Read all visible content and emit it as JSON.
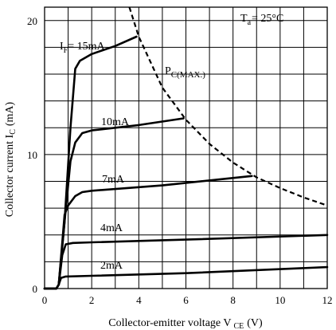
{
  "chart_data": {
    "type": "line",
    "xlabel_main": "Collector-emitter voltage V",
    "xlabel_sub": "CE",
    "xlabel_unit": "(V)",
    "ylabel_main": "Collector current I",
    "ylabel_sub": "C",
    "ylabel_unit": "(mA)",
    "xlim": [
      0,
      12
    ],
    "ylim": [
      0,
      21
    ],
    "x_ticks": [
      0,
      2,
      4,
      6,
      8,
      10,
      12
    ],
    "y_ticks": [
      0,
      10,
      20
    ],
    "grid": true,
    "condition": {
      "prefix": "T",
      "sub": "a",
      "text": "= 25°C"
    },
    "series": [
      {
        "name": "IF= 15mA",
        "label_prefix": "I",
        "label_sub": "F",
        "label_text": "= 15mA",
        "x": [
          0.0,
          0.5,
          0.6,
          0.85,
          1.1,
          1.3,
          1.5,
          2.0,
          3.0,
          3.9
        ],
        "y": [
          0.0,
          0.0,
          0.3,
          5.0,
          12.0,
          16.4,
          17.0,
          17.5,
          18.1,
          18.8
        ]
      },
      {
        "name": "10mA",
        "label_prefix": "",
        "label_sub": "",
        "label_text": "10mA",
        "x": [
          0.0,
          0.5,
          0.6,
          0.85,
          1.1,
          1.3,
          1.6,
          2.0,
          4.0,
          5.9
        ],
        "y": [
          0.0,
          0.0,
          0.3,
          5.0,
          9.5,
          10.9,
          11.6,
          11.8,
          12.2,
          12.7
        ]
      },
      {
        "name": "7mA",
        "label_prefix": "",
        "label_sub": "",
        "label_text": "7mA",
        "x": [
          0.0,
          0.5,
          0.6,
          0.85,
          1.0,
          1.3,
          1.6,
          2.0,
          5.0,
          8.8
        ],
        "y": [
          0.0,
          0.0,
          0.3,
          5.5,
          6.2,
          6.9,
          7.2,
          7.3,
          7.7,
          8.4
        ]
      },
      {
        "name": "4mA",
        "label_prefix": "",
        "label_sub": "",
        "label_text": "4mA",
        "x": [
          0.0,
          0.5,
          0.6,
          0.75,
          0.9,
          1.2,
          2.0,
          6.0,
          12.0
        ],
        "y": [
          0.0,
          0.0,
          0.3,
          2.5,
          3.3,
          3.4,
          3.45,
          3.65,
          4.0
        ]
      },
      {
        "name": "2mA",
        "label_prefix": "",
        "label_sub": "",
        "label_text": "2mA",
        "x": [
          0.0,
          0.5,
          0.6,
          0.7,
          0.9,
          2.0,
          6.0,
          12.0
        ],
        "y": [
          0.0,
          0.0,
          0.3,
          0.8,
          0.9,
          0.95,
          1.15,
          1.6
        ]
      }
    ],
    "pc_max": {
      "label_prefix": "P",
      "label_sub": "C(MAX.)",
      "x": [
        3.6,
        4.0,
        5.0,
        6.0,
        7.0,
        8.0,
        9.0,
        10.0,
        11.0,
        12.0
      ],
      "y": [
        21.0,
        18.8,
        15.0,
        12.6,
        10.8,
        9.4,
        8.3,
        7.5,
        6.8,
        6.2
      ]
    }
  }
}
